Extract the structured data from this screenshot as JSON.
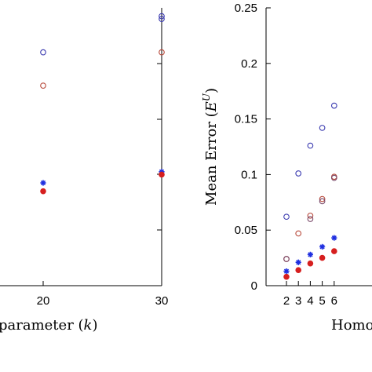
{
  "chart_data": [
    {
      "type": "scatter",
      "xlabel": "parameter (k)",
      "xlim": [
        0,
        30
      ],
      "x_ticks": [
        "20",
        "30"
      ],
      "series": [
        {
          "marker": "open-circle",
          "color": "#3b3bb0",
          "points": [
            [
              20,
              0.84
            ],
            [
              30,
              0.97
            ],
            [
              30,
              0.96
            ]
          ]
        },
        {
          "marker": "open-circle",
          "color": "#b84a3c",
          "points": [
            [
              20,
              0.72
            ],
            [
              30,
              0.84
            ]
          ]
        },
        {
          "marker": "star",
          "color": "#1f2fe0",
          "points": [
            [
              20,
              0.37
            ],
            [
              30,
              0.41
            ]
          ]
        },
        {
          "marker": "filled-circle",
          "color": "#d61f1f",
          "points": [
            [
              20,
              0.34
            ],
            [
              30,
              0.4
            ]
          ]
        }
      ]
    },
    {
      "type": "scatter",
      "ylabel": "Mean Error",
      "ylabel_math": "E",
      "ylabel_sup": "U",
      "xlabel": "Homo",
      "ylim": [
        0,
        0.25
      ],
      "y_ticks": [
        "0",
        "0.05",
        "0.1",
        "0.15",
        "0.2",
        "0.25"
      ],
      "x_ticks": [
        "2",
        "3",
        "4",
        "5",
        "6"
      ],
      "x_tick_values": [
        2,
        3,
        4,
        5,
        6
      ],
      "series": [
        {
          "marker": "open-circle",
          "color": "#3b3bb0",
          "x": [
            2,
            3,
            4,
            5,
            6
          ],
          "values": [
            0.062,
            0.101,
            0.126,
            0.142,
            0.162
          ]
        },
        {
          "marker": "open-circle",
          "color": "#b84a3c",
          "x": [
            2,
            3,
            4,
            5,
            6
          ],
          "values": [
            0.024,
            0.047,
            0.063,
            0.078,
            0.098
          ]
        },
        {
          "marker": "open-circle",
          "color": "#7a4a6a",
          "x": [
            2,
            4,
            5,
            6
          ],
          "values": [
            0.024,
            0.06,
            0.076,
            0.097
          ]
        },
        {
          "marker": "star",
          "color": "#1f2fe0",
          "x": [
            2,
            3,
            4,
            5,
            6
          ],
          "values": [
            0.013,
            0.021,
            0.028,
            0.035,
            0.043
          ]
        },
        {
          "marker": "filled-circle",
          "color": "#d61f1f",
          "x": [
            2,
            3,
            4,
            5,
            6
          ],
          "values": [
            0.008,
            0.014,
            0.02,
            0.025,
            0.031
          ]
        }
      ]
    }
  ]
}
